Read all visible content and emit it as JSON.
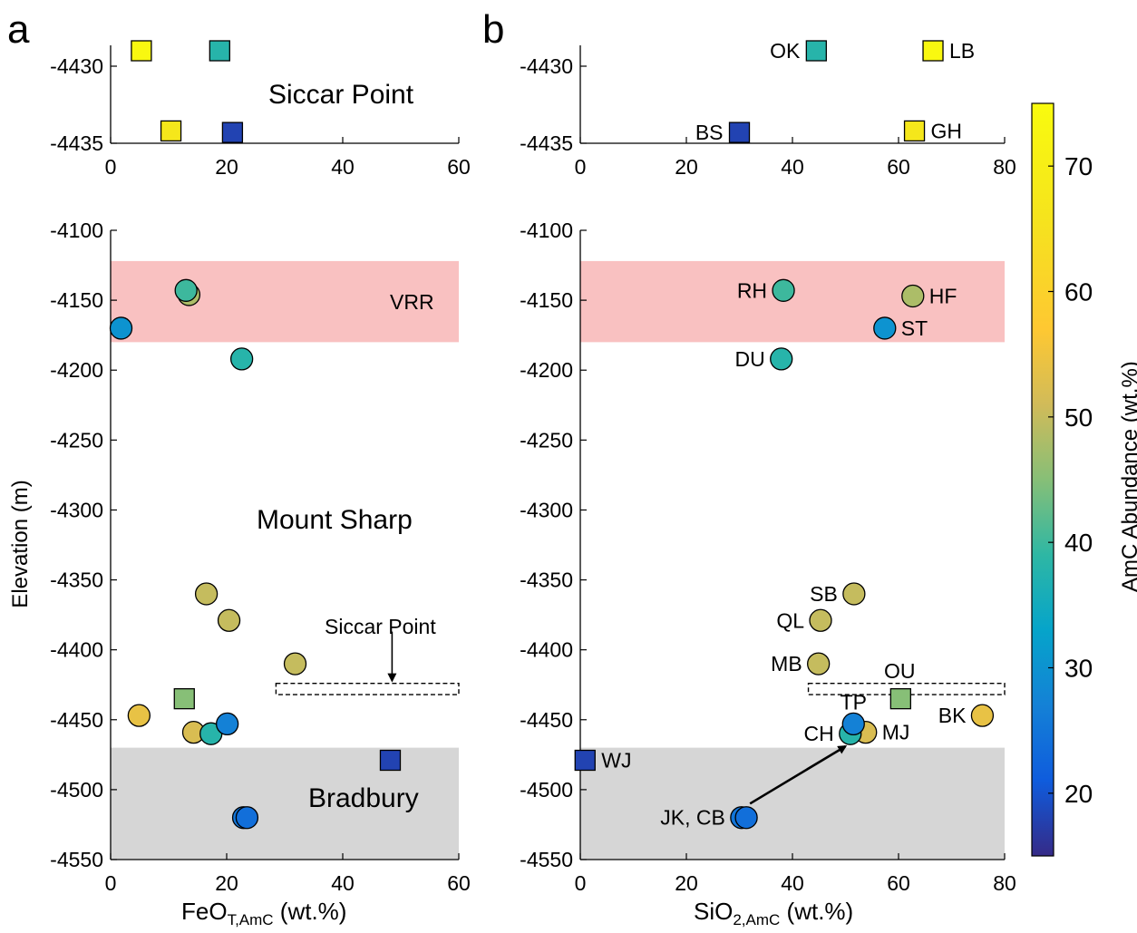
{
  "panels": {
    "a": "a",
    "b": "b"
  },
  "labels": {
    "siccar_point_top": "Siccar Point",
    "mount_sharp": "Mount Sharp",
    "bradbury": "Bradbury",
    "vrr": "VRR",
    "siccar_point_arrow": "Siccar Point",
    "ou_box": "OU"
  },
  "axes": {
    "ylabel": "Elevation (m)",
    "xlabel_a_main": "FeO",
    "xlabel_a_sub": "T,AmC",
    "xlabel_a_unit": " (wt.%)",
    "xlabel_b_main": "SiO",
    "xlabel_b_sub": "2,AmC",
    "xlabel_b_unit": " (wt.%)",
    "colorbar_label": "AmC Abundance (wt.%)"
  },
  "colors": {
    "vrr_band": "#f9c1c1",
    "bradbury_band": "#d6d6d6"
  },
  "chart_data": [
    {
      "id": "a-top",
      "type": "scatter",
      "xlim": [
        0,
        60
      ],
      "ylim": [
        -4435,
        -4428
      ],
      "xticks": [
        0,
        20,
        40,
        60
      ],
      "yticks": [
        -4430,
        -4435
      ],
      "points": [
        {
          "x": 5.3,
          "y": -4429,
          "amc": 74,
          "marker": "square"
        },
        {
          "x": 18.8,
          "y": -4429,
          "amc": 38,
          "marker": "square"
        },
        {
          "x": 10.4,
          "y": -4434.2,
          "amc": 67,
          "marker": "square"
        },
        {
          "x": 21.0,
          "y": -4434.3,
          "amc": 18,
          "marker": "square"
        }
      ]
    },
    {
      "id": "b-top",
      "type": "scatter",
      "xlim": [
        0,
        80
      ],
      "ylim": [
        -4435,
        -4428
      ],
      "xticks": [
        0,
        20,
        40,
        60,
        80
      ],
      "yticks": [
        -4430,
        -4435
      ],
      "points": [
        {
          "x": 44.5,
          "y": -4429,
          "amc": 38,
          "marker": "square",
          "label": "OK",
          "label_side": "left"
        },
        {
          "x": 66.5,
          "y": -4429,
          "amc": 74,
          "marker": "square",
          "label": "LB",
          "label_side": "right"
        },
        {
          "x": 30.0,
          "y": -4434.3,
          "amc": 18,
          "marker": "square",
          "label": "BS",
          "label_side": "left"
        },
        {
          "x": 63.0,
          "y": -4434.2,
          "amc": 67,
          "marker": "square",
          "label": "GH",
          "label_side": "right"
        }
      ]
    },
    {
      "id": "a-main",
      "type": "scatter",
      "xlim": [
        0,
        60
      ],
      "ylim": [
        -4550,
        -4100
      ],
      "xticks": [
        0,
        20,
        40,
        60
      ],
      "yticks": [
        -4100,
        -4150,
        -4200,
        -4250,
        -4300,
        -4350,
        -4400,
        -4450,
        -4500,
        -4550
      ],
      "bands": [
        {
          "name": "VRR",
          "y0": -4180,
          "y1": -4122
        },
        {
          "name": "Bradbury",
          "y0": -4550,
          "y1": -4470
        }
      ],
      "points": [
        {
          "x": 13.5,
          "y": -4146,
          "amc": 48,
          "marker": "circle"
        },
        {
          "x": 13.0,
          "y": -4143,
          "amc": 40,
          "marker": "circle"
        },
        {
          "x": 1.8,
          "y": -4170,
          "amc": 30,
          "marker": "circle"
        },
        {
          "x": 22.6,
          "y": -4192,
          "amc": 38,
          "marker": "circle"
        },
        {
          "x": 16.5,
          "y": -4360,
          "amc": 50,
          "marker": "circle"
        },
        {
          "x": 20.4,
          "y": -4379,
          "amc": 50,
          "marker": "circle"
        },
        {
          "x": 31.8,
          "y": -4410,
          "amc": 50,
          "marker": "circle"
        },
        {
          "x": 12.7,
          "y": -4435,
          "amc": 45,
          "marker": "square"
        },
        {
          "x": 4.9,
          "y": -4447,
          "amc": 54,
          "marker": "circle"
        },
        {
          "x": 14.3,
          "y": -4459,
          "amc": 52,
          "marker": "circle"
        },
        {
          "x": 17.3,
          "y": -4460,
          "amc": 38,
          "marker": "circle"
        },
        {
          "x": 20.1,
          "y": -4453,
          "amc": 27,
          "marker": "circle"
        },
        {
          "x": 48.2,
          "y": -4479,
          "amc": 18,
          "marker": "square"
        },
        {
          "x": 22.9,
          "y": -4520,
          "amc": 25,
          "marker": "circle"
        },
        {
          "x": 23.5,
          "y": -4520,
          "amc": 24,
          "marker": "circle"
        }
      ]
    },
    {
      "id": "b-main",
      "type": "scatter",
      "xlim": [
        0,
        80
      ],
      "ylim": [
        -4550,
        -4100
      ],
      "xticks": [
        0,
        20,
        40,
        60,
        80
      ],
      "yticks": [
        -4100,
        -4150,
        -4200,
        -4250,
        -4300,
        -4350,
        -4400,
        -4450,
        -4500,
        -4550
      ],
      "bands": [
        {
          "name": "VRR",
          "y0": -4180,
          "y1": -4122
        },
        {
          "name": "Bradbury",
          "y0": -4550,
          "y1": -4470
        }
      ],
      "points": [
        {
          "x": 38.3,
          "y": -4143,
          "amc": 40,
          "marker": "circle",
          "label": "RH",
          "label_side": "left"
        },
        {
          "x": 62.7,
          "y": -4147,
          "amc": 48,
          "marker": "circle",
          "label": "HF",
          "label_side": "right"
        },
        {
          "x": 57.4,
          "y": -4170,
          "amc": 30,
          "marker": "circle",
          "label": "ST",
          "label_side": "right"
        },
        {
          "x": 37.9,
          "y": -4192,
          "amc": 38,
          "marker": "circle",
          "label": "DU",
          "label_side": "left"
        },
        {
          "x": 51.6,
          "y": -4360,
          "amc": 50,
          "marker": "circle",
          "label": "SB",
          "label_side": "left"
        },
        {
          "x": 45.3,
          "y": -4379,
          "amc": 50,
          "marker": "circle",
          "label": "QL",
          "label_side": "left"
        },
        {
          "x": 44.9,
          "y": -4410,
          "amc": 50,
          "marker": "circle",
          "label": "MB",
          "label_side": "left"
        },
        {
          "x": 60.4,
          "y": -4435,
          "amc": 45,
          "marker": "square",
          "label": "",
          "label_side": "right"
        },
        {
          "x": 75.8,
          "y": -4447,
          "amc": 54,
          "marker": "circle",
          "label": "BK",
          "label_side": "left"
        },
        {
          "x": 53.8,
          "y": -4459,
          "amc": 52,
          "marker": "circle",
          "label": "MJ",
          "label_side": "right"
        },
        {
          "x": 50.9,
          "y": -4460,
          "amc": 38,
          "marker": "circle",
          "label": "CH",
          "label_side": "left"
        },
        {
          "x": 51.5,
          "y": -4453,
          "amc": 27,
          "marker": "circle",
          "label": "TP",
          "label_side": "above"
        },
        {
          "x": 0.9,
          "y": -4479,
          "amc": 18,
          "marker": "square",
          "label": "WJ",
          "label_side": "right"
        },
        {
          "x": 30.4,
          "y": -4520,
          "amc": 25,
          "marker": "circle",
          "label": "JK, CB",
          "label_side": "left"
        },
        {
          "x": 31.3,
          "y": -4520,
          "amc": 24,
          "marker": "circle",
          "label": "",
          "label_side": "right"
        }
      ],
      "arrow": {
        "from": [
          32,
          -4510
        ],
        "to": [
          50,
          -4469
        ]
      }
    }
  ],
  "colorbar": {
    "min": 15,
    "max": 75,
    "ticks": [
      20,
      30,
      40,
      50,
      60,
      70
    ],
    "label": "AmC Abundance (wt.%)"
  }
}
